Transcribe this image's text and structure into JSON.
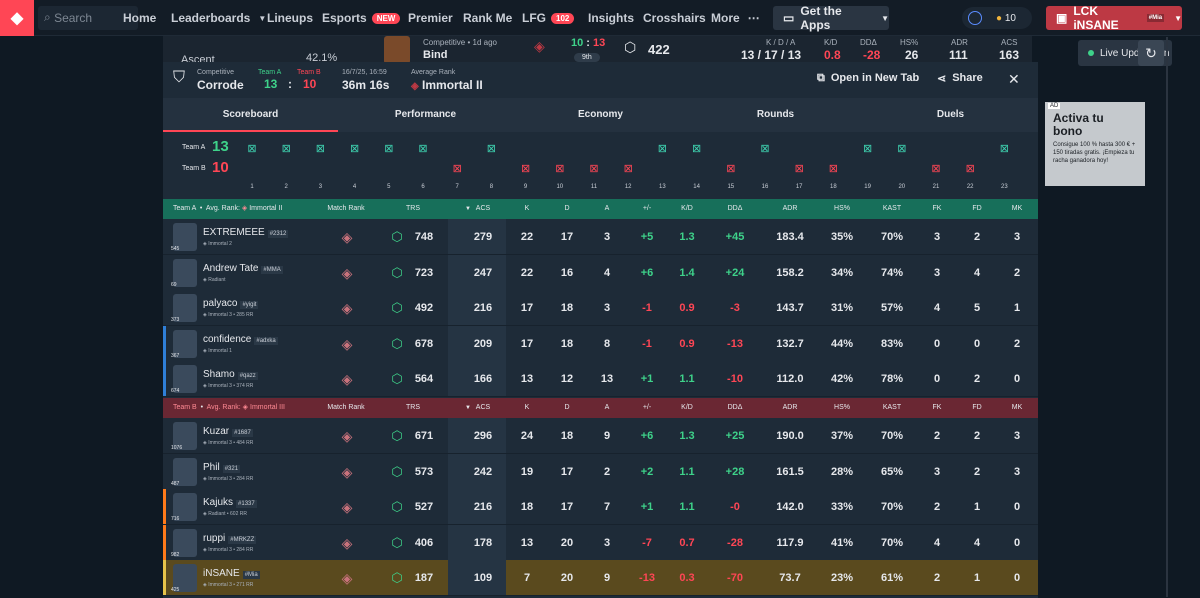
{
  "nav": {
    "search_placeholder": "Search",
    "items": [
      "Home",
      "Leaderboards",
      "Lineups",
      "Esports",
      "Premier",
      "Rank Me",
      "LFG",
      "Insights",
      "Crosshairs",
      "More"
    ],
    "esports_badge": "NEW",
    "lfg_badge": "102",
    "get_apps": "Get the Apps",
    "coins": "10",
    "user": "LCK iNSANE",
    "user_tag": "#Mia"
  },
  "bg": {
    "sidebar_label": "Ascent",
    "sidebar_pct": "42.1%",
    "match_mode": "Competitive",
    "match_ago": "1d ago",
    "match_map": "Bind",
    "score_a": "10",
    "score_b": "13",
    "place": "9th",
    "trs": "422",
    "kda_label": "K / D / A",
    "kda": "13 / 17 / 13",
    "kd_label": "K/D",
    "kd": "0.8",
    "dd_label": "DDΔ",
    "dd": "-28",
    "hs_label": "HS%",
    "hs": "26",
    "adr_label": "ADR",
    "adr": "111",
    "acs_label": "ACS",
    "acs": "163",
    "live": "Live Update On"
  },
  "ad": {
    "label": "AD",
    "title": "Activa tu bono",
    "body": "Consigue 100 % hasta 300 € + 150 tiradas gratis. ¡Empieza tu racha ganadora hoy!"
  },
  "modal": {
    "mode": "Competitive",
    "map": "Corrode",
    "team_a_label": "Team A",
    "team_b_label": "Team B",
    "score_a": "13",
    "score_sep": ":",
    "score_b": "10",
    "date": "16/7/25, 16:59",
    "duration": "36m 16s",
    "avg_rank_label": "Average Rank",
    "avg_rank": "Immortal II",
    "open_tab": "Open in New Tab",
    "share": "Share"
  },
  "tabs": [
    "Scoreboard",
    "Performance",
    "Economy",
    "Rounds",
    "Duels"
  ],
  "timeline": {
    "team_a": "Team A",
    "team_a_score": "13",
    "team_b": "Team B",
    "team_b_score": "10",
    "rounds": [
      "A",
      "A",
      "A",
      "A",
      "A",
      "A",
      "B",
      "A",
      "B",
      "B",
      "B",
      "B",
      "A",
      "A",
      "B",
      "A",
      "B",
      "B",
      "A",
      "A",
      "B",
      "B",
      "A"
    ]
  },
  "columns": [
    "Match Rank",
    "TRS",
    "ACS",
    "K",
    "D",
    "A",
    "+/-",
    "K/D",
    "DDΔ",
    "ADR",
    "HS%",
    "KAST",
    "FK",
    "FD",
    "MK"
  ],
  "teamA": {
    "label": "Team A",
    "avg_label": "Avg. Rank:",
    "avg_rank": "Immortal II",
    "players": [
      {
        "name": "EXTREMEEE",
        "tag": "#2312",
        "rank": "Immortal 2",
        "level": "545",
        "trs": "748",
        "acs": "279",
        "k": "22",
        "d": "17",
        "a": "3",
        "pm": "+5",
        "kd": "1.3",
        "dd": "+45",
        "adr": "183.4",
        "hs": "35%",
        "kast": "70%",
        "fk": "3",
        "fd": "2",
        "mk": "3"
      },
      {
        "name": "Andrew Tate",
        "tag": "#MMA",
        "rank": "Radiant",
        "level": "69",
        "trs": "723",
        "acs": "247",
        "k": "22",
        "d": "16",
        "a": "4",
        "pm": "+6",
        "kd": "1.4",
        "dd": "+24",
        "adr": "158.2",
        "hs": "34%",
        "kast": "74%",
        "fk": "3",
        "fd": "4",
        "mk": "2"
      },
      {
        "name": "palyaco",
        "tag": "#yigit",
        "rank": "Immortal 3 • 285 RR",
        "level": "373",
        "trs": "492",
        "acs": "216",
        "k": "17",
        "d": "18",
        "a": "3",
        "pm": "-1",
        "kd": "0.9",
        "dd": "-3",
        "adr": "143.7",
        "hs": "31%",
        "kast": "57%",
        "fk": "4",
        "fd": "5",
        "mk": "1"
      },
      {
        "name": "confidence",
        "tag": "#adxka",
        "rank": "Immortal 1",
        "level": "367",
        "trs": "678",
        "acs": "209",
        "k": "17",
        "d": "18",
        "a": "8",
        "pm": "-1",
        "kd": "0.9",
        "dd": "-13",
        "adr": "132.7",
        "hs": "44%",
        "kast": "83%",
        "fk": "0",
        "fd": "0",
        "mk": "2"
      },
      {
        "name": "Shamo",
        "tag": "#qazz",
        "rank": "Immortal 3 • 374 RR",
        "level": "674",
        "trs": "564",
        "acs": "166",
        "k": "13",
        "d": "12",
        "a": "13",
        "pm": "+1",
        "kd": "1.1",
        "dd": "-10",
        "adr": "112.0",
        "hs": "42%",
        "kast": "78%",
        "fk": "0",
        "fd": "2",
        "mk": "0"
      }
    ]
  },
  "teamB": {
    "label": "Team B",
    "avg_label": "Avg. Rank:",
    "avg_rank": "Immortal III",
    "players": [
      {
        "name": "Kuzar",
        "tag": "#1687",
        "rank": "Immortal 3 • 484 RR",
        "level": "1076",
        "trs": "671",
        "acs": "296",
        "k": "24",
        "d": "18",
        "a": "9",
        "pm": "+6",
        "kd": "1.3",
        "dd": "+25",
        "adr": "190.0",
        "hs": "37%",
        "kast": "70%",
        "fk": "2",
        "fd": "2",
        "mk": "3"
      },
      {
        "name": "Phil",
        "tag": "#321",
        "rank": "Immortal 3 • 284 RR",
        "level": "487",
        "trs": "573",
        "acs": "242",
        "k": "19",
        "d": "17",
        "a": "2",
        "pm": "+2",
        "kd": "1.1",
        "dd": "+28",
        "adr": "161.5",
        "hs": "28%",
        "kast": "65%",
        "fk": "3",
        "fd": "2",
        "mk": "3"
      },
      {
        "name": "Kajuks",
        "tag": "#1337",
        "rank": "Radiant • 602 RR",
        "level": "716",
        "trs": "527",
        "acs": "216",
        "k": "18",
        "d": "17",
        "a": "7",
        "pm": "+1",
        "kd": "1.1",
        "dd": "-0",
        "adr": "142.0",
        "hs": "33%",
        "kast": "70%",
        "fk": "2",
        "fd": "1",
        "mk": "0"
      },
      {
        "name": "ruppi",
        "tag": "#MRKZZ",
        "rank": "Immortal 3 • 284 RR",
        "level": "982",
        "trs": "406",
        "acs": "178",
        "k": "13",
        "d": "20",
        "a": "3",
        "pm": "-7",
        "kd": "0.7",
        "dd": "-28",
        "adr": "117.9",
        "hs": "41%",
        "kast": "70%",
        "fk": "4",
        "fd": "4",
        "mk": "0"
      },
      {
        "name": "iNSANE",
        "tag": "#Mia",
        "rank": "Immortal 3 • 271 RR",
        "level": "425",
        "trs": "187",
        "acs": "109",
        "k": "7",
        "d": "20",
        "a": "9",
        "pm": "-13",
        "kd": "0.3",
        "dd": "-70",
        "adr": "73.7",
        "hs": "23%",
        "kast": "61%",
        "fk": "2",
        "fd": "1",
        "mk": "0"
      }
    ]
  }
}
